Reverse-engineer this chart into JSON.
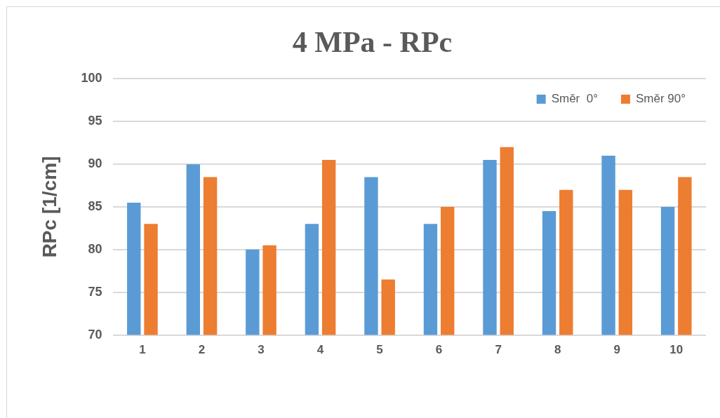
{
  "chart_data": {
    "type": "bar",
    "title": "4 MPa - RPc",
    "ylabel": "RPc [1/cm]",
    "categories": [
      "1",
      "2",
      "3",
      "4",
      "5",
      "6",
      "7",
      "8",
      "9",
      "10"
    ],
    "series": [
      {
        "name": "Směr  0°",
        "color": "#5b9bd5",
        "values": [
          85.5,
          90,
          80,
          83,
          88.5,
          83,
          90.5,
          84.5,
          91,
          85
        ]
      },
      {
        "name": "Směr 90°",
        "color": "#ed7d31",
        "values": [
          83,
          88.5,
          80.5,
          90.5,
          76.5,
          85,
          92,
          87,
          87,
          88.5
        ]
      }
    ],
    "ylim": [
      70,
      100
    ],
    "yticks": [
      70,
      75,
      80,
      85,
      90,
      95,
      100
    ],
    "grid": "y",
    "legend": "top right"
  }
}
